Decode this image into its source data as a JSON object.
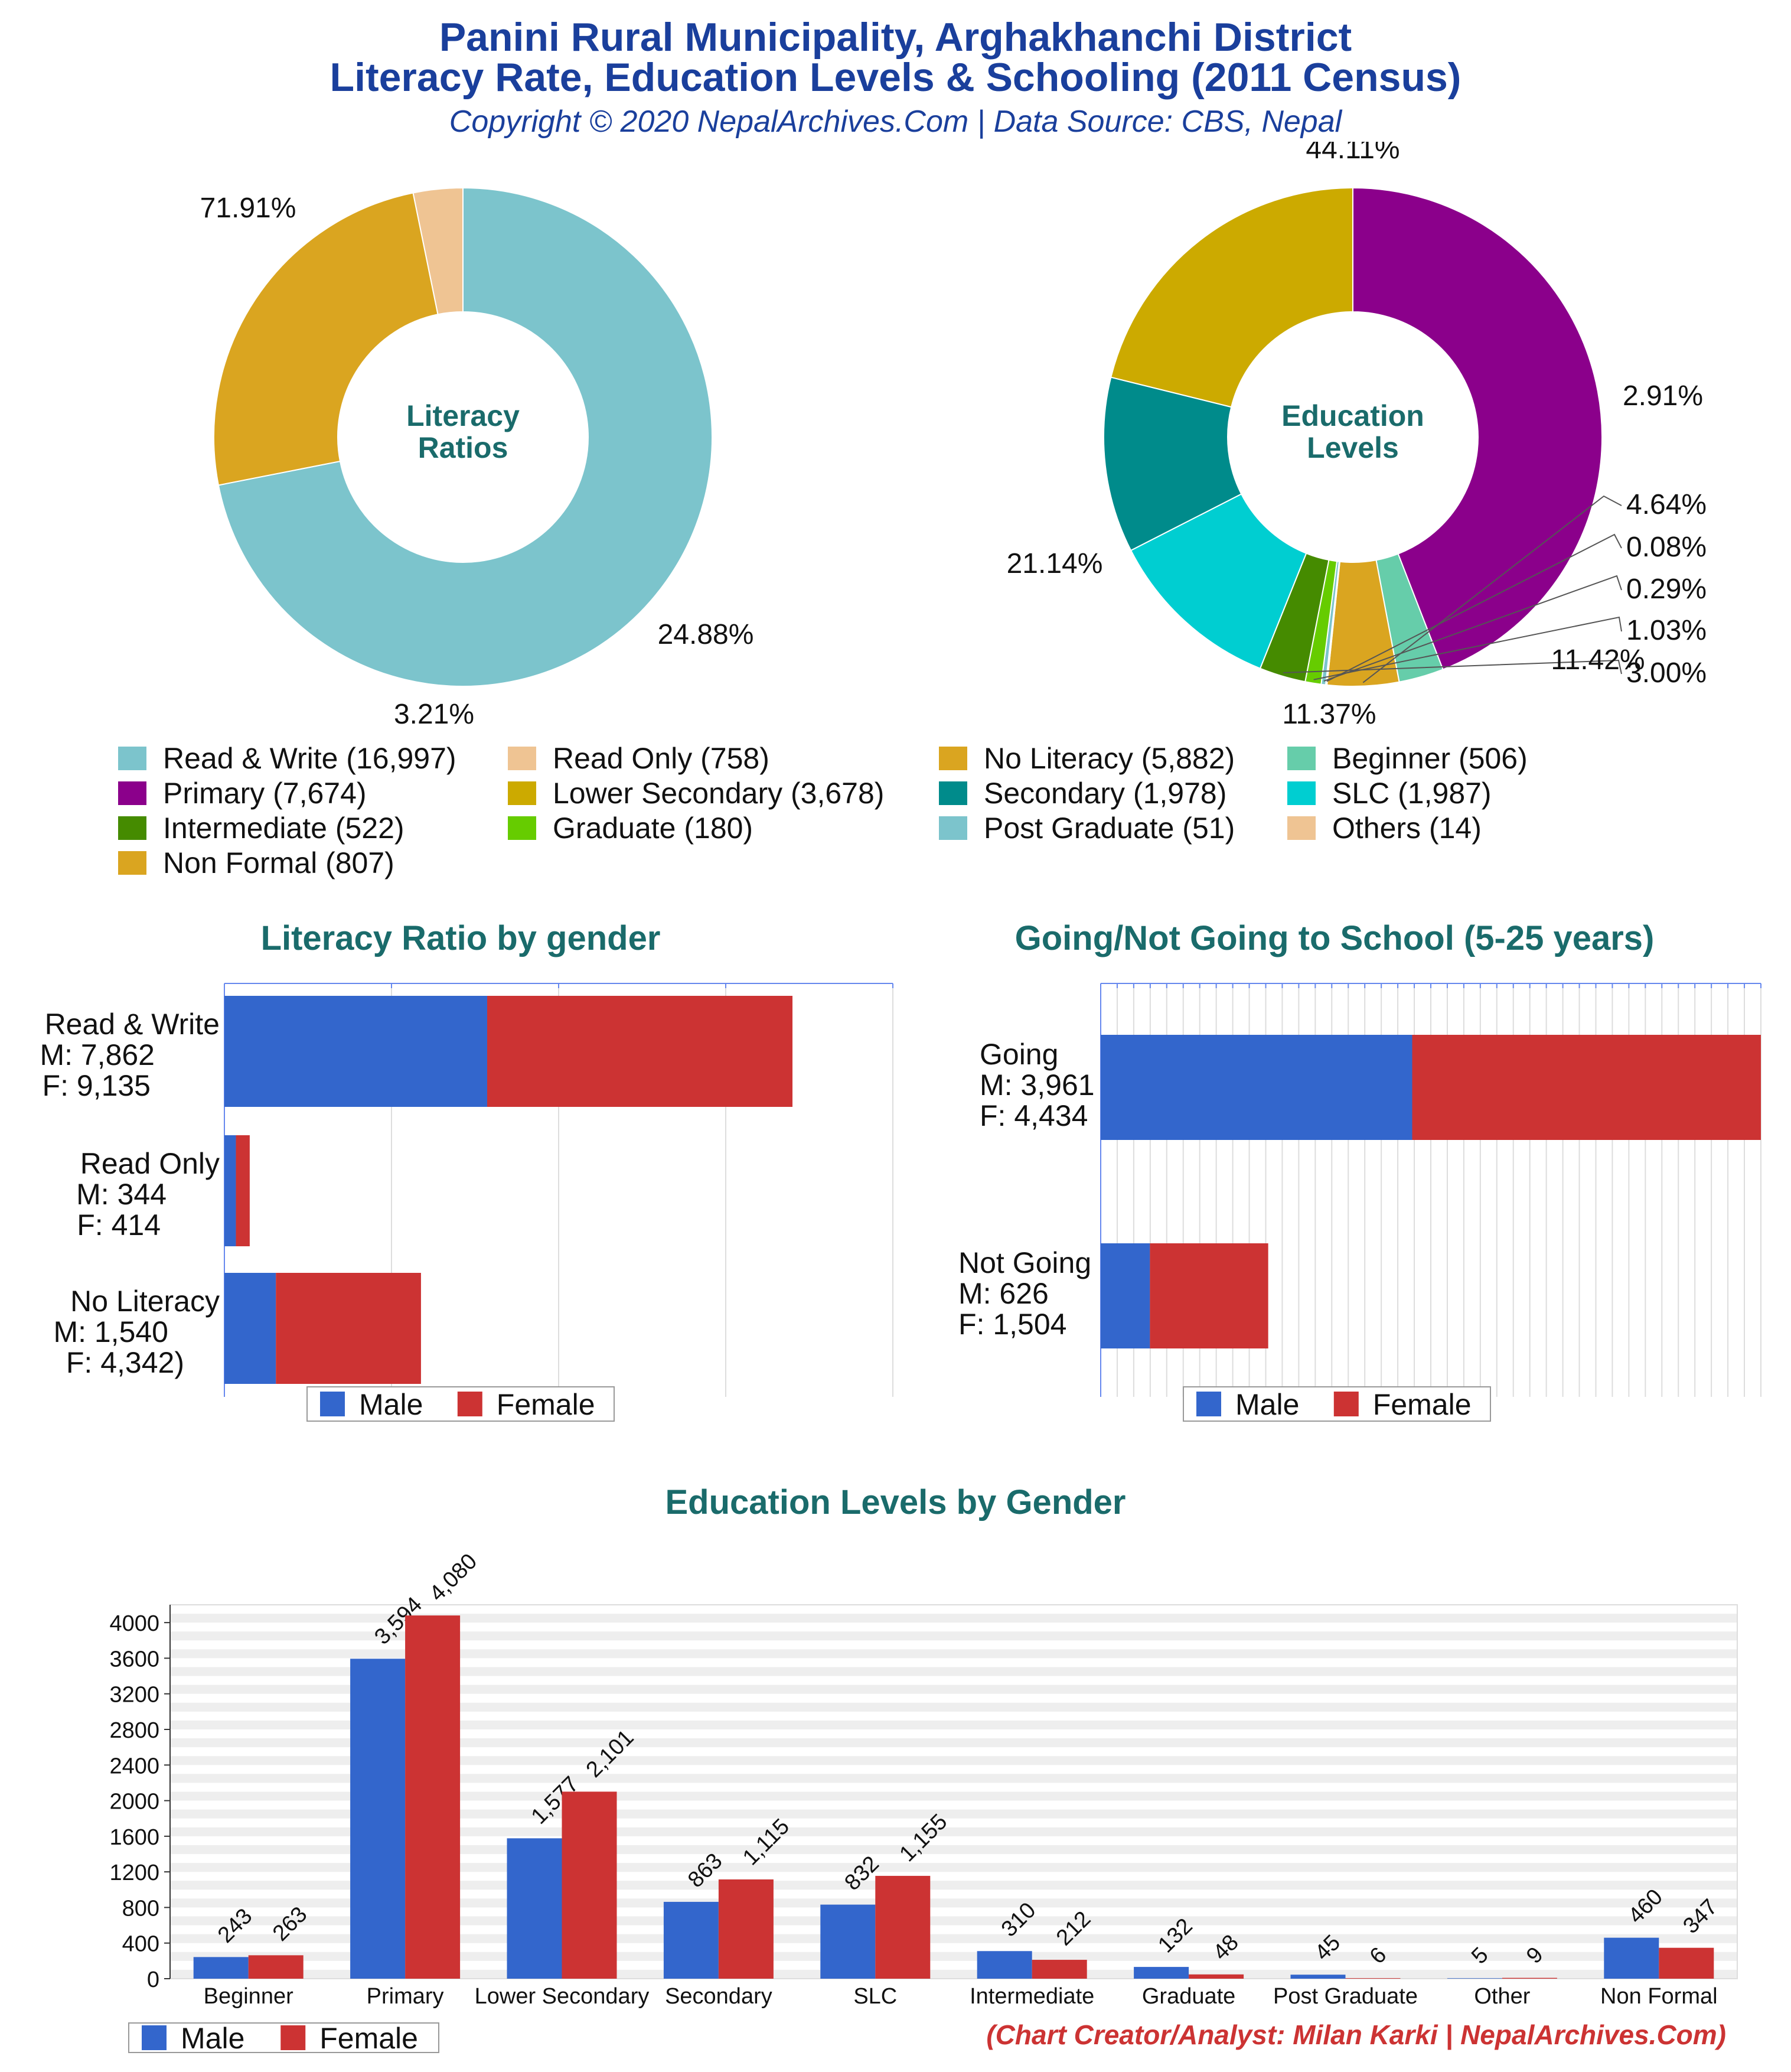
{
  "header": {
    "title_line1": "Panini Rural Municipality, Arghakhanchi District",
    "title_line2": "Literacy Rate, Education Levels & Schooling (2011 Census)",
    "copyright": "Copyright © 2020 NepalArchives.Com | Data Source: CBS, Nepal"
  },
  "colors": {
    "male": "#3366cc",
    "female": "#cc3333",
    "title_blue": "#1a3f9c",
    "section_teal": "#1a6b6b"
  },
  "chart_data": [
    {
      "id": "literacy-donut",
      "type": "pie",
      "title": "Literacy Ratios",
      "slices": [
        {
          "label": "Read & Write",
          "value": 16997,
          "percent": "71.91%",
          "color": "#7cc4cc"
        },
        {
          "label": "No Literacy",
          "value": 5882,
          "percent": "24.88%",
          "color": "#daa520"
        },
        {
          "label": "Read Only",
          "value": 758,
          "percent": "3.21%",
          "color": "#efc493"
        }
      ]
    },
    {
      "id": "education-donut",
      "type": "pie",
      "title": "Education Levels",
      "slices": [
        {
          "label": "Primary",
          "value": 7674,
          "percent": "44.11%",
          "color": "#8b008b"
        },
        {
          "label": "Beginner",
          "value": 506,
          "percent": "2.91%",
          "color": "#66cdaa"
        },
        {
          "label": "Non Formal",
          "value": 807,
          "percent": "4.64%",
          "color": "#daa520"
        },
        {
          "label": "Others",
          "value": 14,
          "percent": "0.08%",
          "color": "#efc493"
        },
        {
          "label": "Post Graduate",
          "value": 51,
          "percent": "0.29%",
          "color": "#7cc4cc"
        },
        {
          "label": "Graduate",
          "value": 180,
          "percent": "1.03%",
          "color": "#66cc00"
        },
        {
          "label": "Intermediate",
          "value": 522,
          "percent": "3.00%",
          "color": "#458b00"
        },
        {
          "label": "SLC",
          "value": 1987,
          "percent": "11.42%",
          "color": "#00ced1"
        },
        {
          "label": "Secondary",
          "value": 1978,
          "percent": "11.37%",
          "color": "#008b8b"
        },
        {
          "label": "Lower Secondary",
          "value": 3678,
          "percent": "21.14%",
          "color": "#ccaa00"
        }
      ]
    },
    {
      "id": "literacy-gender",
      "type": "bar",
      "title": "Literacy Ratio by gender",
      "orientation": "horizontal",
      "stacked": true,
      "categories": [
        "Read & Write",
        "Read Only",
        "No Literacy"
      ],
      "category_labels": [
        [
          "Read & Write",
          "M: 7,862",
          "F: 9,135"
        ],
        [
          "Read Only",
          "M: 344",
          "F: 414"
        ],
        [
          "No Literacy",
          "M: 1,540",
          "F: 4,342)"
        ]
      ],
      "series": [
        {
          "name": "Male",
          "values": [
            7862,
            344,
            1540
          ]
        },
        {
          "name": "Female",
          "values": [
            9135,
            414,
            4342
          ]
        }
      ],
      "xlim": [
        0,
        20000
      ],
      "legend": "bottom"
    },
    {
      "id": "school-gender",
      "type": "bar",
      "title": "Going/Not Going to School (5-25 years)",
      "orientation": "horizontal",
      "stacked": true,
      "categories": [
        "Going",
        "Not Going"
      ],
      "category_labels": [
        [
          "Going",
          "M: 3,961",
          "F: 4,434"
        ],
        [
          "Not Going",
          "M: 626",
          "F: 1,504"
        ]
      ],
      "series": [
        {
          "name": "Male",
          "values": [
            3961,
            626
          ]
        },
        {
          "name": "Female",
          "values": [
            4434,
            1504
          ]
        }
      ],
      "xlim": [
        0,
        8395
      ],
      "legend": "bottom"
    },
    {
      "id": "education-gender",
      "type": "bar",
      "title": "Education Levels by Gender",
      "categories": [
        "Beginner",
        "Primary",
        "Lower Secondary",
        "Secondary",
        "SLC",
        "Intermediate",
        "Graduate",
        "Post Graduate",
        "Other",
        "Non Formal"
      ],
      "series": [
        {
          "name": "Male",
          "values": [
            243,
            3594,
            1577,
            863,
            832,
            310,
            132,
            45,
            5,
            460
          ],
          "labels": [
            "243",
            "3,594",
            "1,577",
            "863",
            "832",
            "310",
            "132",
            "45",
            "5",
            "460"
          ]
        },
        {
          "name": "Female",
          "values": [
            263,
            4080,
            2101,
            1115,
            1155,
            212,
            48,
            6,
            9,
            347
          ],
          "labels": [
            "263",
            "4,080",
            "2,101",
            "1,115",
            "1,155",
            "212",
            "48",
            "6",
            "9",
            "347"
          ]
        }
      ],
      "ylim": [
        0,
        4200
      ],
      "yticks": [
        0,
        400,
        800,
        1200,
        1600,
        2000,
        2400,
        2800,
        3200,
        3600,
        4000
      ],
      "legend": "bottom-left"
    }
  ],
  "legend_top": [
    {
      "label": "Read & Write (16,997)",
      "color": "#7cc4cc"
    },
    {
      "label": "Read Only (758)",
      "color": "#efc493"
    },
    {
      "label": "No Literacy (5,882)",
      "color": "#daa520"
    },
    {
      "label": "Beginner (506)",
      "color": "#66cdaa"
    },
    {
      "label": "Primary (7,674)",
      "color": "#8b008b"
    },
    {
      "label": "Lower Secondary (3,678)",
      "color": "#ccaa00"
    },
    {
      "label": "Secondary (1,978)",
      "color": "#008b8b"
    },
    {
      "label": "SLC (1,987)",
      "color": "#00ced1"
    },
    {
      "label": "Intermediate (522)",
      "color": "#458b00"
    },
    {
      "label": "Graduate (180)",
      "color": "#66cc00"
    },
    {
      "label": "Post Graduate (51)",
      "color": "#7cc4cc"
    },
    {
      "label": "Others (14)",
      "color": "#efc493"
    },
    {
      "label": "Non Formal (807)",
      "color": "#daa520"
    }
  ],
  "legend_gender": {
    "male": "Male",
    "female": "Female"
  },
  "credit": "(Chart Creator/Analyst: Milan Karki | NepalArchives.Com)"
}
